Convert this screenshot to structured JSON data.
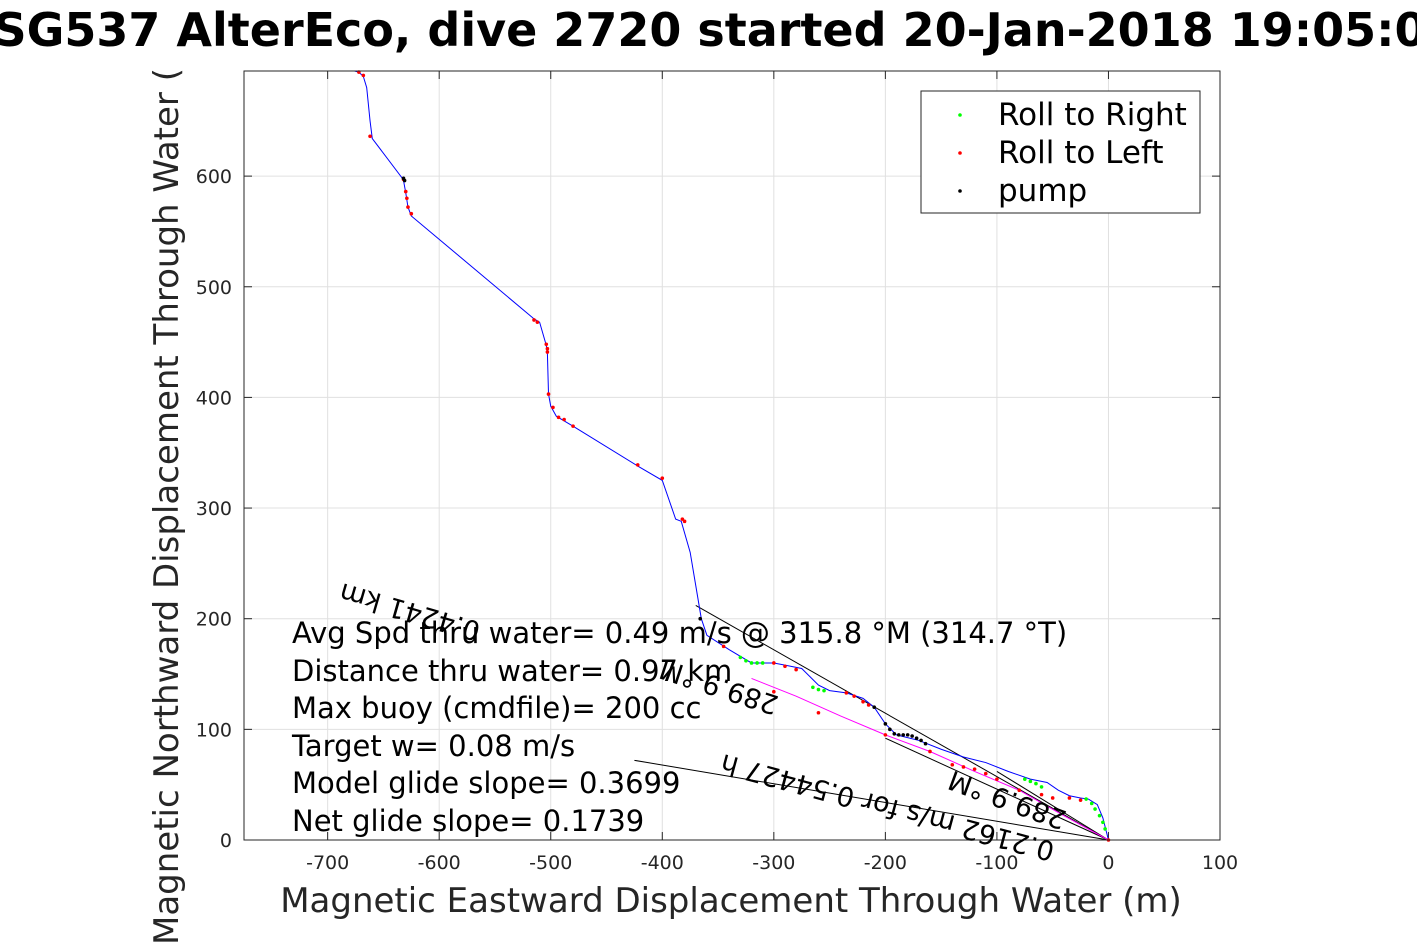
{
  "chart_data": {
    "type": "line",
    "title": "SG537 AlterEco, dive 2720 started 20-Jan-2018 19:05:0",
    "xlabel": "Magnetic Eastward Displacement Through Water (m)",
    "ylabel": "Magnetic Northward Displacement Through Water (",
    "xlim": [
      -775,
      100
    ],
    "ylim": [
      0,
      695
    ],
    "xticks": [
      -700,
      -600,
      -500,
      -400,
      -300,
      -200,
      -100,
      0,
      100
    ],
    "yticks": [
      0,
      100,
      200,
      300,
      400,
      500,
      600
    ],
    "grid": true,
    "legend_position": "top-right",
    "legend": [
      {
        "label": "Roll to Right",
        "color": "#00ff00",
        "marker": "dot"
      },
      {
        "label": "Roll to Left",
        "color": "#ff0000",
        "marker": "dot"
      },
      {
        "label": "pump",
        "color": "#000000",
        "marker": "dot"
      }
    ],
    "colors": {
      "track": "#0000ff",
      "current": "#ff00ff",
      "reference": "#000000"
    },
    "series": [
      {
        "color": "#0000ff",
        "x": [
          0,
          -5,
          -10,
          -18,
          -25,
          -35,
          -45,
          -55,
          -70,
          -90,
          -110,
          -130,
          -150,
          -170,
          -190,
          -200,
          -210,
          -220,
          -235,
          -250,
          -260,
          -275,
          -290,
          -300,
          -320,
          -340,
          -360,
          -365,
          -370,
          -375,
          -383,
          -388,
          -400,
          -422,
          -480,
          -490,
          -495,
          -500,
          -502,
          -503,
          -504,
          -510,
          -515,
          -625,
          -628,
          -630,
          -632,
          -633,
          -660,
          -662,
          -665,
          -668,
          -672,
          -676
        ],
        "y": [
          0,
          20,
          32,
          37,
          38,
          40,
          45,
          52,
          55,
          62,
          70,
          75,
          82,
          90,
          95,
          105,
          120,
          128,
          133,
          135,
          140,
          155,
          158,
          160,
          160,
          172,
          185,
          200,
          230,
          260,
          288,
          290,
          325,
          338,
          374,
          380,
          383,
          392,
          403,
          440,
          447,
          468,
          471,
          564,
          572,
          585,
          596,
          598,
          634,
          650,
          680,
          690,
          694,
          695
        ]
      },
      {
        "color": "#ff00ff",
        "x": [
          0,
          -40,
          -80,
          -120,
          -160,
          -200,
          -240,
          -280,
          -320
        ],
        "y": [
          0,
          22,
          45,
          62,
          80,
          95,
          112,
          130,
          146
        ]
      }
    ],
    "roll_left_points": [
      {
        "x": -672,
        "y": 694
      },
      {
        "x": -668,
        "y": 691
      },
      {
        "x": -662,
        "y": 636
      },
      {
        "x": -632,
        "y": 597
      },
      {
        "x": -630,
        "y": 586
      },
      {
        "x": -629,
        "y": 580
      },
      {
        "x": -628,
        "y": 572
      },
      {
        "x": -625,
        "y": 566
      },
      {
        "x": -515,
        "y": 470
      },
      {
        "x": -512,
        "y": 468
      },
      {
        "x": -504,
        "y": 448
      },
      {
        "x": -503,
        "y": 444
      },
      {
        "x": -503,
        "y": 441
      },
      {
        "x": -502,
        "y": 403
      },
      {
        "x": -498,
        "y": 391
      },
      {
        "x": -493,
        "y": 382
      },
      {
        "x": -488,
        "y": 380
      },
      {
        "x": -480,
        "y": 374
      },
      {
        "x": -422,
        "y": 339
      },
      {
        "x": -400,
        "y": 327
      },
      {
        "x": -382,
        "y": 290
      },
      {
        "x": -380,
        "y": 288
      },
      {
        "x": -345,
        "y": 175
      },
      {
        "x": -300,
        "y": 160
      },
      {
        "x": -290,
        "y": 157
      },
      {
        "x": -280,
        "y": 154
      },
      {
        "x": -235,
        "y": 133
      },
      {
        "x": -228,
        "y": 130
      },
      {
        "x": -220,
        "y": 125
      },
      {
        "x": -215,
        "y": 122
      },
      {
        "x": -140,
        "y": 68
      },
      {
        "x": -130,
        "y": 66
      },
      {
        "x": -120,
        "y": 64
      },
      {
        "x": -110,
        "y": 60
      },
      {
        "x": -60,
        "y": 41
      },
      {
        "x": -50,
        "y": 38
      },
      {
        "x": -35,
        "y": 38
      },
      {
        "x": -25,
        "y": 36
      },
      {
        "x": -200,
        "y": 95
      },
      {
        "x": -260,
        "y": 115
      },
      {
        "x": -300,
        "y": 134
      },
      {
        "x": -80,
        "y": 45
      },
      {
        "x": -100,
        "y": 55
      },
      {
        "x": -160,
        "y": 80
      },
      {
        "x": 0,
        "y": 0
      }
    ],
    "roll_right_points": [
      {
        "x": -330,
        "y": 165
      },
      {
        "x": -325,
        "y": 162
      },
      {
        "x": -320,
        "y": 160
      },
      {
        "x": -315,
        "y": 160
      },
      {
        "x": -310,
        "y": 160
      },
      {
        "x": -265,
        "y": 138
      },
      {
        "x": -260,
        "y": 136
      },
      {
        "x": -255,
        "y": 135
      },
      {
        "x": -75,
        "y": 55
      },
      {
        "x": -70,
        "y": 53
      },
      {
        "x": -65,
        "y": 51
      },
      {
        "x": -60,
        "y": 48
      },
      {
        "x": -20,
        "y": 37
      },
      {
        "x": -15,
        "y": 33
      },
      {
        "x": -12,
        "y": 28
      },
      {
        "x": -8,
        "y": 22
      },
      {
        "x": -5,
        "y": 16
      },
      {
        "x": -3,
        "y": 10
      }
    ],
    "pump_points": [
      {
        "x": -632,
        "y": 598
      },
      {
        "x": -631,
        "y": 596
      },
      {
        "x": -200,
        "y": 105
      },
      {
        "x": -196,
        "y": 100
      },
      {
        "x": -192,
        "y": 96
      },
      {
        "x": -188,
        "y": 95
      },
      {
        "x": -184,
        "y": 95
      },
      {
        "x": -180,
        "y": 95
      },
      {
        "x": -176,
        "y": 94
      },
      {
        "x": -172,
        "y": 92
      },
      {
        "x": -168,
        "y": 90
      },
      {
        "x": -164,
        "y": 87
      },
      {
        "x": -210,
        "y": 120
      },
      {
        "x": -366,
        "y": 200
      }
    ],
    "reference_lines": [
      {
        "x": [
          0,
          -370
        ],
        "y": [
          0,
          212
        ]
      },
      {
        "x": [
          0,
          -425
        ],
        "y": [
          0,
          72
        ]
      },
      {
        "x": [
          0,
          -200
        ],
        "y": [
          0,
          92
        ]
      },
      {
        "x": [
          0,
          -100
        ],
        "y": [
          0,
          62
        ]
      }
    ],
    "annotations": [
      "Avg Spd thru water=  0.49 m/s @ 315.8 °M (314.7 °T)",
      "Distance thru water= 0.97 km",
      "Max buoy (cmdfile)= 200 cc",
      "Target w= 0.08 m/s",
      "Model glide slope= 0.3699",
      "Net glide slope= 0.1739"
    ],
    "rotated_labels": [
      "0.2162 m/s for 0.54427 h",
      "289.9 °M",
      "0.4241 km",
      "289.9 °M"
    ]
  }
}
